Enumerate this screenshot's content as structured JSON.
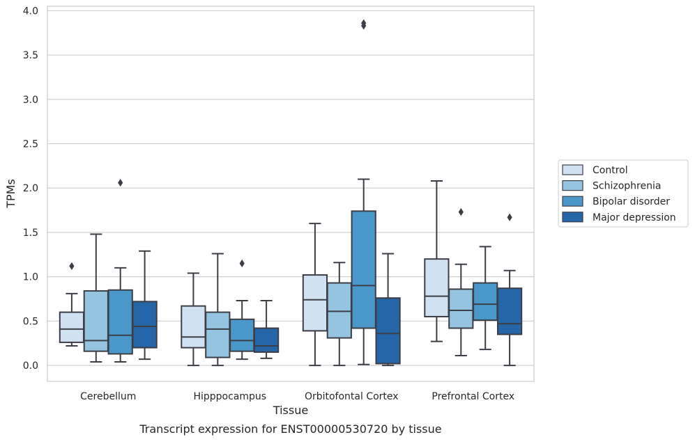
{
  "chart_data": {
    "type": "box",
    "title": "Transcript expression for ENST00000530720 by tissue",
    "xlabel": "Tissue",
    "ylabel": "TPMs",
    "ylim": [
      -0.18,
      4.05
    ],
    "yticks": [
      "0.0",
      "0.5",
      "1.0",
      "1.5",
      "2.0",
      "2.5",
      "3.0",
      "3.5",
      "4.0"
    ],
    "grid": "horizontal",
    "legend_position": "right",
    "categories": [
      "Cerebellum",
      "Hipppocampus",
      "Orbitofontal Cortex",
      "Prefrontal Cortex"
    ],
    "series": [
      {
        "name": "Control",
        "color": "#d0e1f2",
        "boxes": [
          {
            "whislo": 0.22,
            "q1": 0.26,
            "med": 0.41,
            "q3": 0.6,
            "whishi": 0.81,
            "fliers": [
              1.12
            ]
          },
          {
            "whislo": 0.0,
            "q1": 0.2,
            "med": 0.32,
            "q3": 0.67,
            "whishi": 1.04,
            "fliers": []
          },
          {
            "whislo": 0.0,
            "q1": 0.39,
            "med": 0.74,
            "q3": 1.02,
            "whishi": 1.6,
            "fliers": []
          },
          {
            "whislo": 0.27,
            "q1": 0.55,
            "med": 0.78,
            "q3": 1.2,
            "whishi": 2.08,
            "fliers": []
          }
        ]
      },
      {
        "name": "Schizophrenia",
        "color": "#94c4df",
        "boxes": [
          {
            "whislo": 0.04,
            "q1": 0.16,
            "med": 0.28,
            "q3": 0.84,
            "whishi": 1.48,
            "fliers": []
          },
          {
            "whislo": 0.0,
            "q1": 0.09,
            "med": 0.41,
            "q3": 0.6,
            "whishi": 1.26,
            "fliers": []
          },
          {
            "whislo": 0.0,
            "q1": 0.31,
            "med": 0.61,
            "q3": 0.93,
            "whishi": 1.16,
            "fliers": []
          },
          {
            "whislo": 0.11,
            "q1": 0.42,
            "med": 0.62,
            "q3": 0.86,
            "whishi": 1.14,
            "fliers": [
              1.73
            ]
          }
        ]
      },
      {
        "name": "Bipolar disorder",
        "color": "#4a98c9",
        "boxes": [
          {
            "whislo": 0.04,
            "q1": 0.13,
            "med": 0.34,
            "q3": 0.85,
            "whishi": 1.1,
            "fliers": [
              2.06
            ]
          },
          {
            "whislo": 0.07,
            "q1": 0.16,
            "med": 0.28,
            "q3": 0.52,
            "whishi": 0.73,
            "fliers": [
              1.15
            ]
          },
          {
            "whislo": 0.01,
            "q1": 0.42,
            "med": 0.9,
            "q3": 1.74,
            "whishi": 2.1,
            "fliers": [
              3.83,
              3.86
            ]
          },
          {
            "whislo": 0.18,
            "q1": 0.51,
            "med": 0.69,
            "q3": 0.93,
            "whishi": 1.34,
            "fliers": []
          }
        ]
      },
      {
        "name": "Major depression",
        "color": "#2566a8",
        "boxes": [
          {
            "whislo": 0.07,
            "q1": 0.2,
            "med": 0.44,
            "q3": 0.72,
            "whishi": 1.29,
            "fliers": []
          },
          {
            "whislo": 0.08,
            "q1": 0.15,
            "med": 0.22,
            "q3": 0.42,
            "whishi": 0.73,
            "fliers": []
          },
          {
            "whislo": 0.0,
            "q1": 0.02,
            "med": 0.36,
            "q3": 0.76,
            "whishi": 1.26,
            "fliers": []
          },
          {
            "whislo": 0.0,
            "q1": 0.35,
            "med": 0.47,
            "q3": 0.87,
            "whishi": 1.07,
            "fliers": [
              1.67
            ]
          }
        ]
      }
    ]
  }
}
